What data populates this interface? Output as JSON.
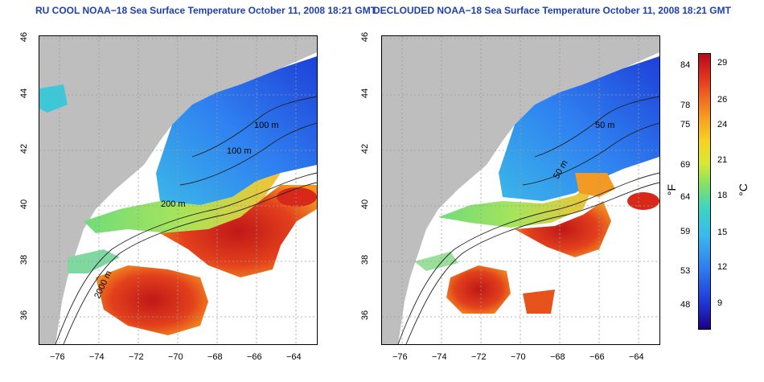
{
  "panels": [
    {
      "title": "RU COOL NOAA−18 Sea Surface Temperature October 11, 2008 18:21 GMT"
    },
    {
      "title": "DECLOUDED NOAA−18 Sea Surface Temperature October 11, 2008 18:21 GMT"
    }
  ],
  "axes": {
    "lon_ticks": [
      "−76",
      "−74",
      "−72",
      "−70",
      "−68",
      "−66",
      "−64"
    ],
    "lat_ticks": [
      "36",
      "38",
      "40",
      "42",
      "44",
      "46"
    ],
    "lon_range": [
      -77,
      -63
    ],
    "lat_range": [
      35.2,
      46
    ]
  },
  "contours": {
    "labels": [
      "100 m",
      "100 m",
      "50 m",
      "200 m",
      "50 m",
      "2000 m"
    ]
  },
  "colorbar": {
    "fahrenheit_unit": "°F",
    "celsius_unit": "°C",
    "fahrenheit_ticks": [
      "84",
      "78",
      "75",
      "69",
      "64",
      "59",
      "53",
      "48"
    ],
    "celsius_ticks": [
      "29",
      "26",
      "24",
      "21",
      "18",
      "15",
      "12",
      "9"
    ]
  },
  "colors": {
    "title": "#1f3fb0",
    "land": "#bebebe",
    "cold": "#1b0088",
    "warm": "#b8081c"
  }
}
